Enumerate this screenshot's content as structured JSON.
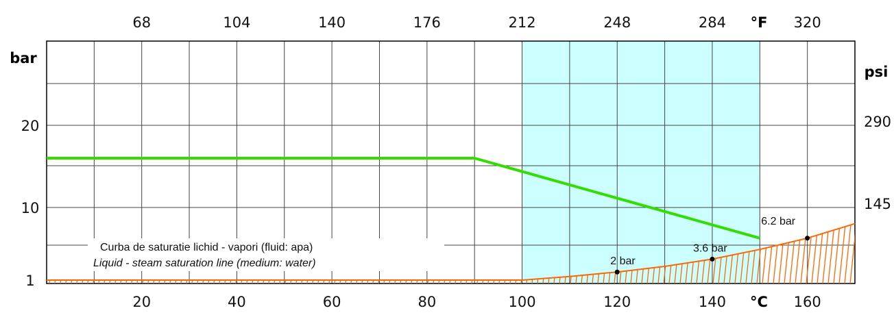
{
  "chart_data": {
    "type": "line",
    "x_unit_bottom": "°C",
    "x_unit_top": "°F",
    "y_unit_left": "bar",
    "y_unit_right": "psi",
    "xlim": [
      0,
      170
    ],
    "bottom_ticks": [
      {
        "value": 20,
        "label": "20"
      },
      {
        "value": 40,
        "label": "40"
      },
      {
        "value": 60,
        "label": "60"
      },
      {
        "value": 80,
        "label": "80"
      },
      {
        "value": 100,
        "label": "100"
      },
      {
        "value": 120,
        "label": "120"
      },
      {
        "value": 140,
        "label": "140"
      },
      {
        "value": 160,
        "label": "160"
      }
    ],
    "top_ticks": [
      {
        "value": 20,
        "label": "68"
      },
      {
        "value": 40,
        "label": "104"
      },
      {
        "value": 60,
        "label": "140"
      },
      {
        "value": 80,
        "label": "176"
      },
      {
        "value": 100,
        "label": "212"
      },
      {
        "value": 120,
        "label": "248"
      },
      {
        "value": 140,
        "label": "284"
      },
      {
        "value": 160,
        "label": "320"
      }
    ],
    "left_ticks": [
      {
        "value": 1,
        "label": "1"
      },
      {
        "value": 10,
        "label": "10"
      },
      {
        "value": 20,
        "label": "20"
      }
    ],
    "right_ticks": [
      {
        "value": 10,
        "label": "145"
      },
      {
        "value": 20,
        "label": "290"
      }
    ],
    "highlight_region": {
      "x_from": 100,
      "x_to": 150,
      "color": "#ccffff"
    },
    "series": [
      {
        "role": "operating-limit",
        "color": "#33dd00",
        "points": [
          [
            0,
            16
          ],
          [
            90,
            16
          ],
          [
            150,
            6.2
          ]
        ]
      },
      {
        "role": "saturation",
        "color": "#ff6600",
        "points": [
          [
            0,
            1
          ],
          [
            100,
            1
          ],
          [
            110,
            1.45
          ],
          [
            120,
            2
          ],
          [
            130,
            2.7
          ],
          [
            140,
            3.6
          ],
          [
            150,
            4.8
          ],
          [
            160,
            6.2
          ],
          [
            170,
            8
          ]
        ]
      }
    ],
    "point_labels": [
      {
        "x": 120,
        "y": 2,
        "label": "2 bar",
        "marker": true
      },
      {
        "x": 140,
        "y": 3.6,
        "label": "3.6 bar",
        "marker": true
      },
      {
        "x": 160,
        "y": 6.2,
        "label": "",
        "marker": true
      },
      {
        "x": 150,
        "y": 6.2,
        "label": "6.2 bar",
        "marker": false
      }
    ],
    "annotation_lines": [
      "Curba de saturatie lichid - vapori (fluid: apa)",
      "Liquid - steam saturation line (medium: water)"
    ]
  }
}
